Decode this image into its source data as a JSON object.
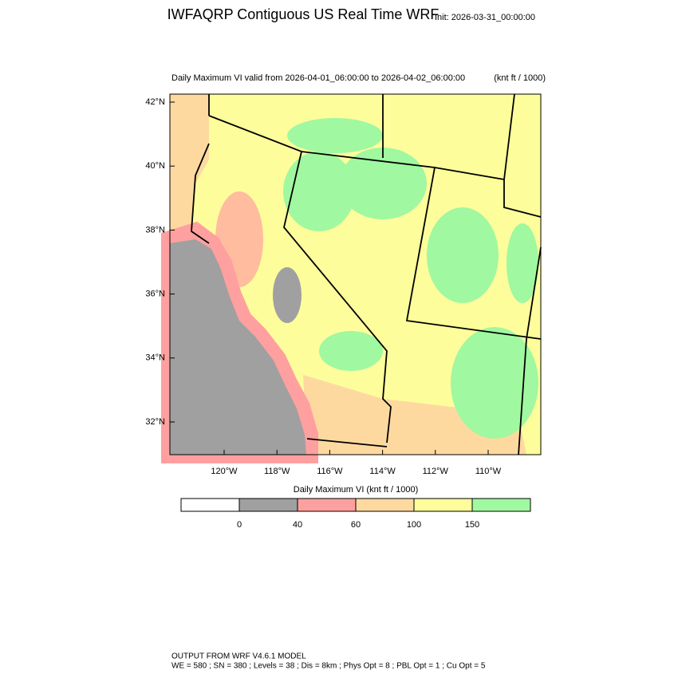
{
  "header": {
    "title": "IWFAQRP Contiguous US Real Time WRF",
    "init": "Init: 2026-03-31_00:00:00"
  },
  "map": {
    "subtitle": "Daily Maximum VI valid from 2026-04-01_06:00:00 to 2026-04-02_06:00:00",
    "units": "(knt ft / 1000)",
    "lat_labels": [
      "42°N",
      "40°N",
      "38°N",
      "36°N",
      "34°N",
      "32°N"
    ],
    "lon_labels": [
      "120°W",
      "118°W",
      "116°W",
      "114°W",
      "112°W",
      "110°W"
    ]
  },
  "colorbar": {
    "title": "Daily Maximum VI  (knt ft / 1000)",
    "colors": [
      "#ffffff",
      "#a0a0a0",
      "#ffa0a0",
      "#fdd9a0",
      "#fdfd9c",
      "#a0f8a0"
    ],
    "ticks": [
      0,
      40,
      60,
      100,
      150
    ]
  },
  "footer": {
    "line1": "OUTPUT FROM WRF V4.6.1 MODEL",
    "line2": "WE = 580 ; SN = 380 ; Levels = 38 ; Dis = 8km ; Phys Opt = 8 ; PBL Opt = 1 ; Cu Opt = 5"
  }
}
